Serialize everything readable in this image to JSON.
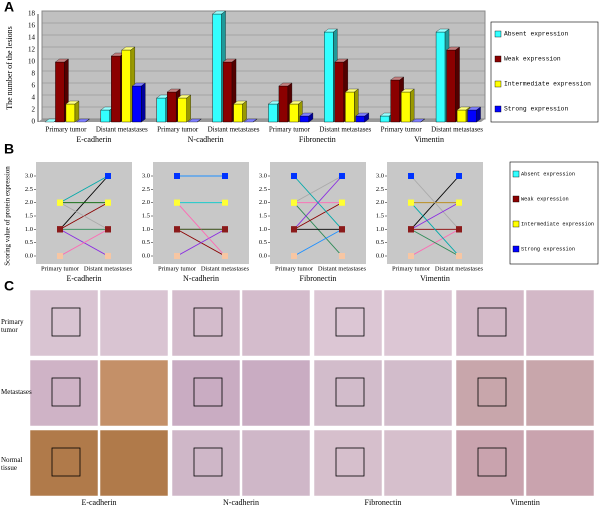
{
  "panel_labels": [
    "A",
    "B",
    "C"
  ],
  "chart_data": [
    {
      "type": "bar3d",
      "ylabel": "The number of the lesions",
      "categories": [
        "Primary tumor",
        "Distant metastases",
        "Primary tumor",
        "Distant metastases",
        "Primary tumor",
        "Distant metastases",
        "Primary tumor",
        "Distant metastases"
      ],
      "groups": [
        "E-cadherin",
        "N-cadherin",
        "Fibronectin",
        "Vimentin"
      ],
      "series": [
        {
          "name": "Absent expression",
          "color": "#33ffff",
          "values": [
            0,
            2,
            4,
            18,
            3,
            15,
            1,
            15
          ]
        },
        {
          "name": "Weak expression",
          "color": "#8b0000",
          "values": [
            10,
            11,
            5,
            10,
            6,
            10,
            7,
            12
          ]
        },
        {
          "name": "Intermediate expression",
          "color": "#ffff00",
          "values": [
            3,
            12,
            4,
            3,
            3,
            5,
            5,
            2
          ]
        },
        {
          "name": "Strong expression",
          "color": "#0000ff",
          "values": [
            0,
            6,
            0,
            0,
            1,
            1,
            0,
            2
          ]
        }
      ],
      "ylim": [
        0,
        18
      ],
      "yticks": [
        0,
        2,
        4,
        6,
        8,
        10,
        12,
        14,
        16,
        18
      ],
      "grid": true
    },
    {
      "type": "slope",
      "ylabel": "Scoring value of protein expression",
      "title": "E-cadherin",
      "categories": [
        "Primary tumor",
        "Distant metastases"
      ],
      "level_colors": [
        "#f7c6a3",
        "#8b1a1a",
        "#ffff33",
        "#0033ff"
      ],
      "lines": [
        {
          "color": "#000000",
          "values": [
            1,
            3
          ]
        },
        {
          "color": "#8b0000",
          "values": [
            1,
            2
          ]
        },
        {
          "color": "#2e8b57",
          "values": [
            1,
            1
          ]
        },
        {
          "color": "#aaaaaa",
          "values": [
            2,
            1
          ]
        },
        {
          "color": "#00aaaa",
          "values": [
            2,
            3
          ]
        },
        {
          "color": "#8a2be2",
          "values": [
            1,
            0
          ]
        },
        {
          "color": "#006400",
          "values": [
            2,
            2
          ]
        },
        {
          "color": "#ff69b4",
          "values": [
            0,
            1
          ]
        }
      ],
      "ylim": [
        0,
        3
      ],
      "yticks": [
        {
          "value": 0,
          "label": "0.0"
        },
        {
          "value": 0.5,
          "label": "0.5"
        },
        {
          "value": 1,
          "label": "1.0"
        },
        {
          "value": 1.5,
          "label": "1.5"
        },
        {
          "value": 2,
          "label": "2.0"
        },
        {
          "value": 2.5,
          "label": "2.5"
        },
        {
          "value": 3,
          "label": "3.0"
        }
      ]
    },
    {
      "type": "slope",
      "title": "N-cadherin",
      "categories": [
        "Primary tumor",
        "Distant metastases"
      ],
      "level_colors": [
        "#f7c6a3",
        "#8b1a1a",
        "#ffff33",
        "#0033ff"
      ],
      "lines": [
        {
          "color": "#00cccc",
          "values": [
            2,
            2
          ]
        },
        {
          "color": "#8b0000",
          "values": [
            1,
            0
          ]
        },
        {
          "color": "#000000",
          "values": [
            1,
            1
          ]
        },
        {
          "color": "#8a2be2",
          "values": [
            0,
            1
          ]
        },
        {
          "color": "#ff69b4",
          "values": [
            2,
            0
          ]
        },
        {
          "color": "#556b2f",
          "values": [
            1,
            1
          ]
        },
        {
          "color": "#1e90ff",
          "values": [
            3,
            3
          ]
        }
      ],
      "ylim": [
        0,
        3
      ],
      "yticks": [
        {
          "value": 0,
          "label": "0.0"
        },
        {
          "value": 0.5,
          "label": "0.5"
        },
        {
          "value": 1,
          "label": "1.0"
        },
        {
          "value": 1.5,
          "label": "1.5"
        },
        {
          "value": 2,
          "label": "2.0"
        },
        {
          "value": 2.5,
          "label": "2.5"
        },
        {
          "value": 3,
          "label": "3.0"
        }
      ]
    },
    {
      "type": "slope",
      "title": "Fibronectin",
      "categories": [
        "Primary tumor",
        "Distant metastases"
      ],
      "level_colors": [
        "#f7c6a3",
        "#8b1a1a",
        "#ffff33",
        "#0033ff"
      ],
      "lines": [
        {
          "color": "#aaaaaa",
          "values": [
            2,
            3
          ]
        },
        {
          "color": "#2e8b57",
          "values": [
            2,
            0
          ]
        },
        {
          "color": "#8b0000",
          "values": [
            1,
            2
          ]
        },
        {
          "color": "#000000",
          "values": [
            1,
            1
          ]
        },
        {
          "color": "#1e90ff",
          "values": [
            0,
            1
          ]
        },
        {
          "color": "#ff69b4",
          "values": [
            2,
            2
          ]
        },
        {
          "color": "#8a2be2",
          "values": [
            1,
            3
          ]
        },
        {
          "color": "#00aaaa",
          "values": [
            3,
            1
          ]
        }
      ],
      "ylim": [
        0,
        3
      ],
      "yticks": [
        {
          "value": 0,
          "label": "0.0"
        },
        {
          "value": 0.5,
          "label": "0.5"
        },
        {
          "value": 1,
          "label": "1.0"
        },
        {
          "value": 1.5,
          "label": "1.5"
        },
        {
          "value": 2,
          "label": "2.0"
        },
        {
          "value": 2.5,
          "label": "2.5"
        },
        {
          "value": 3,
          "label": "3.0"
        }
      ]
    },
    {
      "type": "slope",
      "title": "Vimentin",
      "categories": [
        "Primary tumor",
        "Distant metastases"
      ],
      "level_colors": [
        "#f7c6a3",
        "#8b1a1a",
        "#ffff33",
        "#0033ff"
      ],
      "lines": [
        {
          "color": "#000000",
          "values": [
            1,
            3
          ]
        },
        {
          "color": "#b8860b",
          "values": [
            2,
            2
          ]
        },
        {
          "color": "#8b0000",
          "values": [
            1,
            1
          ]
        },
        {
          "color": "#aaaaaa",
          "values": [
            3,
            1
          ]
        },
        {
          "color": "#ff69b4",
          "values": [
            0,
            1
          ]
        },
        {
          "color": "#2e8b57",
          "values": [
            1,
            0
          ]
        },
        {
          "color": "#00aaaa",
          "values": [
            2,
            0
          ]
        },
        {
          "color": "#8a2be2",
          "values": [
            1,
            2
          ]
        }
      ],
      "ylim": [
        0,
        3
      ],
      "yticks": [
        {
          "value": 0,
          "label": "0.0"
        },
        {
          "value": 0.5,
          "label": "0.5"
        },
        {
          "value": 1,
          "label": "1.0"
        },
        {
          "value": 1.5,
          "label": "1.5"
        },
        {
          "value": 2,
          "label": "2.0"
        },
        {
          "value": 2.5,
          "label": "2.5"
        },
        {
          "value": 3,
          "label": "3.0"
        }
      ]
    }
  ],
  "panel_b_legend": {
    "names": [
      "Absent expression",
      "Weak expression",
      "Intermediate expression",
      "Strong expression"
    ],
    "colors": [
      "#33ffff",
      "#8b0000",
      "#ffff00",
      "#0000ff"
    ]
  },
  "micrographs": {
    "rows": [
      "Primary tumor",
      "Metastases",
      "Normal tissue"
    ],
    "columns": [
      "E-cadherin",
      "N-cadherin",
      "Fibronectin",
      "Vimentin"
    ]
  }
}
